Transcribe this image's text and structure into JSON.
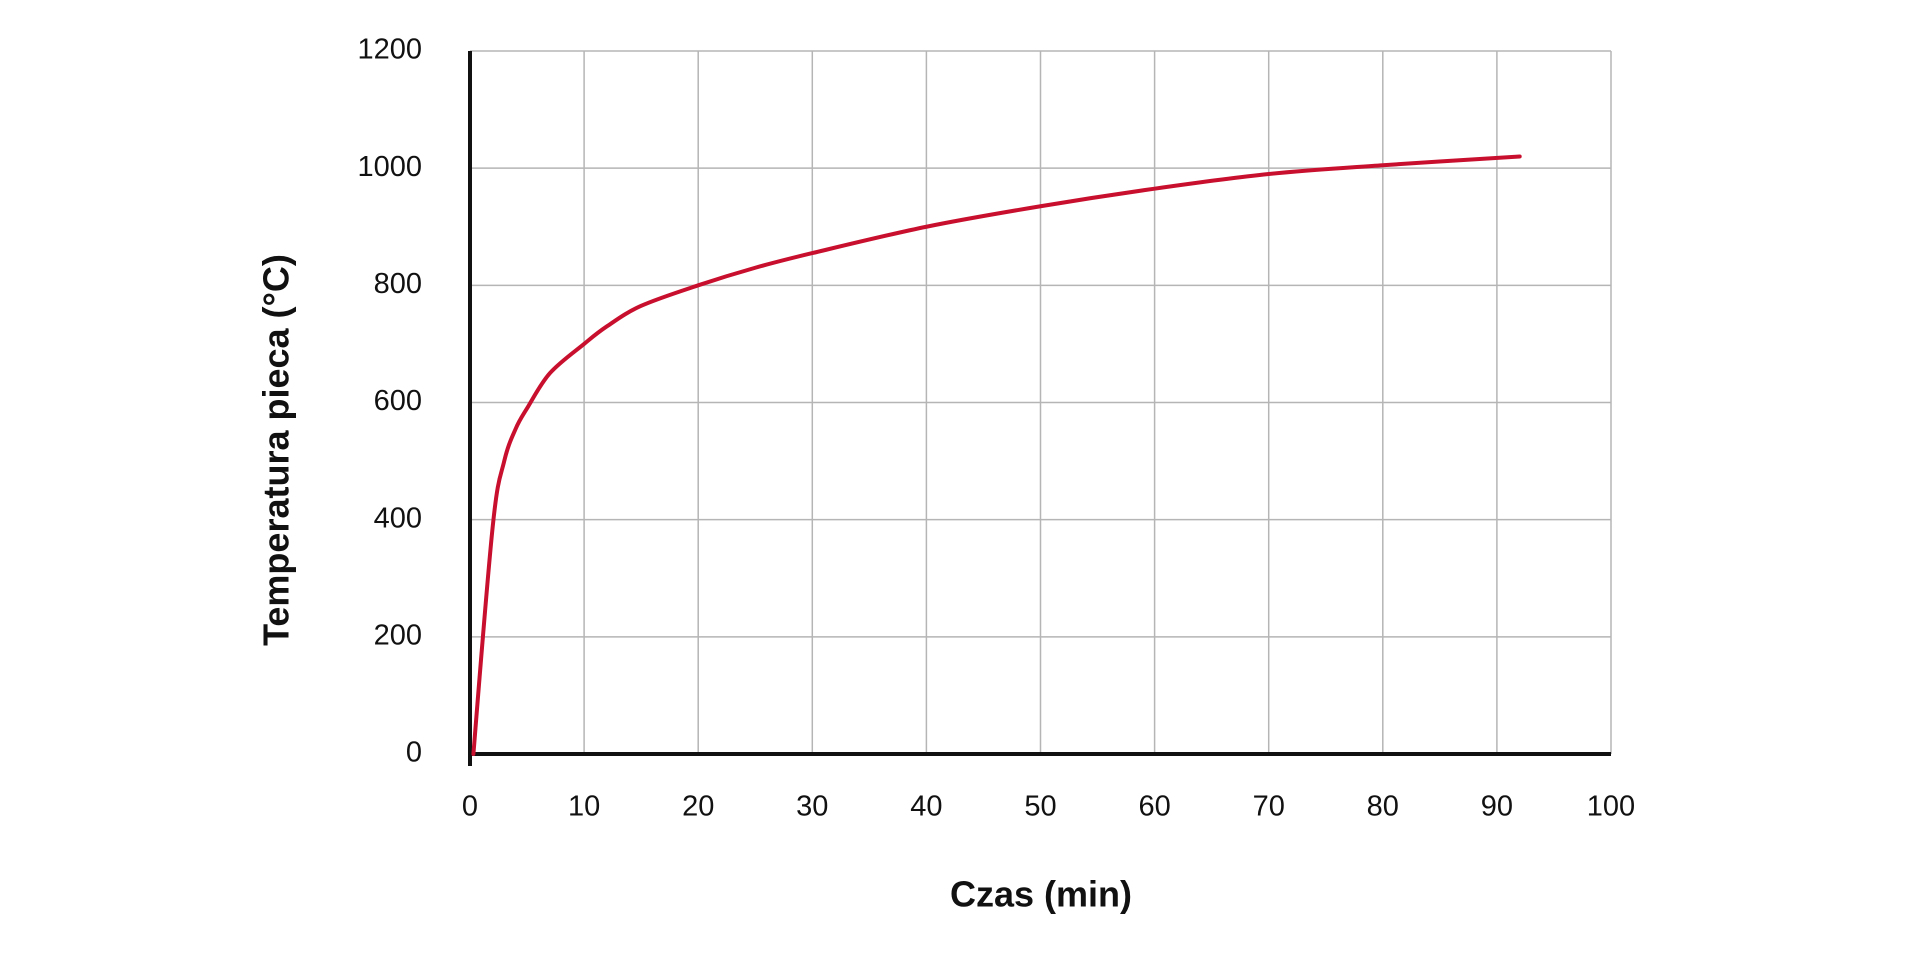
{
  "chart_data": {
    "type": "line",
    "x_label": "Czas (min)",
    "y_label": "Temperatura pieca (°C)",
    "x": [
      0.3,
      2,
      3,
      4,
      5,
      7,
      10,
      12,
      15,
      20,
      25,
      30,
      40,
      50,
      60,
      70,
      80,
      92
    ],
    "values": [
      0,
      390,
      500,
      555,
      590,
      650,
      700,
      730,
      765,
      800,
      830,
      855,
      900,
      935,
      965,
      990,
      1005,
      1020
    ],
    "color": "#c8102e",
    "xlim": [
      0,
      100
    ],
    "xticks": [
      0,
      10,
      20,
      30,
      40,
      50,
      60,
      70,
      80,
      90,
      100
    ],
    "ylim": [
      0,
      1200
    ],
    "yticks": [
      0,
      200,
      400,
      600,
      800,
      1000,
      1200
    ],
    "grid": true
  }
}
